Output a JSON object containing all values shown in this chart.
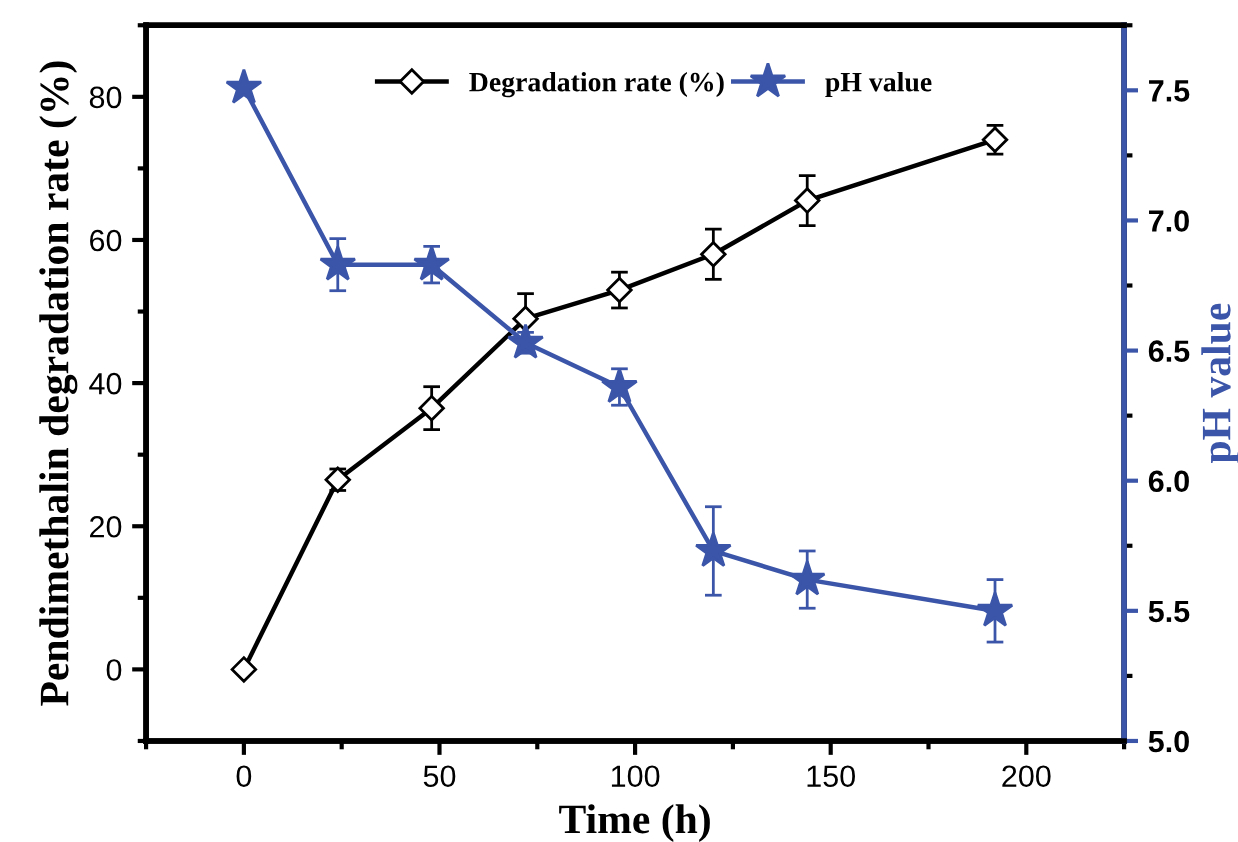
{
  "chart_data": {
    "type": "line",
    "xlabel": "Time (h)",
    "ylabel": "Pendimethalin degradation rate (%)",
    "y2label": "pH value",
    "x": [
      0,
      24,
      48,
      72,
      96,
      120,
      144,
      192
    ],
    "series": [
      {
        "name": "Degradation rate (%)",
        "color": "#000000",
        "marker": "diamond",
        "values": [
          0,
          26.5,
          36.5,
          49,
          53,
          58,
          65.5,
          74
        ],
        "errors": [
          null,
          1.5,
          3,
          3.5,
          2.5,
          3.5,
          3.5,
          2
        ]
      },
      {
        "name": "pH value",
        "color": "#3b55a8",
        "marker": "star",
        "axis": "y2",
        "values": [
          7.51,
          6.83,
          6.83,
          6.53,
          6.36,
          5.73,
          5.62,
          5.5
        ],
        "errors": [
          null,
          0.1,
          0.07,
          0.04,
          0.07,
          0.17,
          0.11,
          0.12
        ]
      }
    ],
    "xlim": [
      -25,
      225
    ],
    "xticks": [
      0,
      50,
      100,
      150,
      200
    ],
    "ylim": [
      -10,
      90
    ],
    "yticks": [
      0,
      20,
      40,
      60,
      80
    ],
    "y2lim": [
      5,
      7.75
    ],
    "y2ticks": [
      {
        "value": 5,
        "label": "5.0"
      },
      {
        "value": 5.5,
        "label": "5.5"
      },
      {
        "value": 6,
        "label": "6.0"
      },
      {
        "value": 6.5,
        "label": "6.5"
      },
      {
        "value": 7,
        "label": "7.0"
      },
      {
        "value": 7.5,
        "label": "7.5"
      }
    ],
    "legend": "top",
    "grid": false,
    "line_style": "solid"
  }
}
